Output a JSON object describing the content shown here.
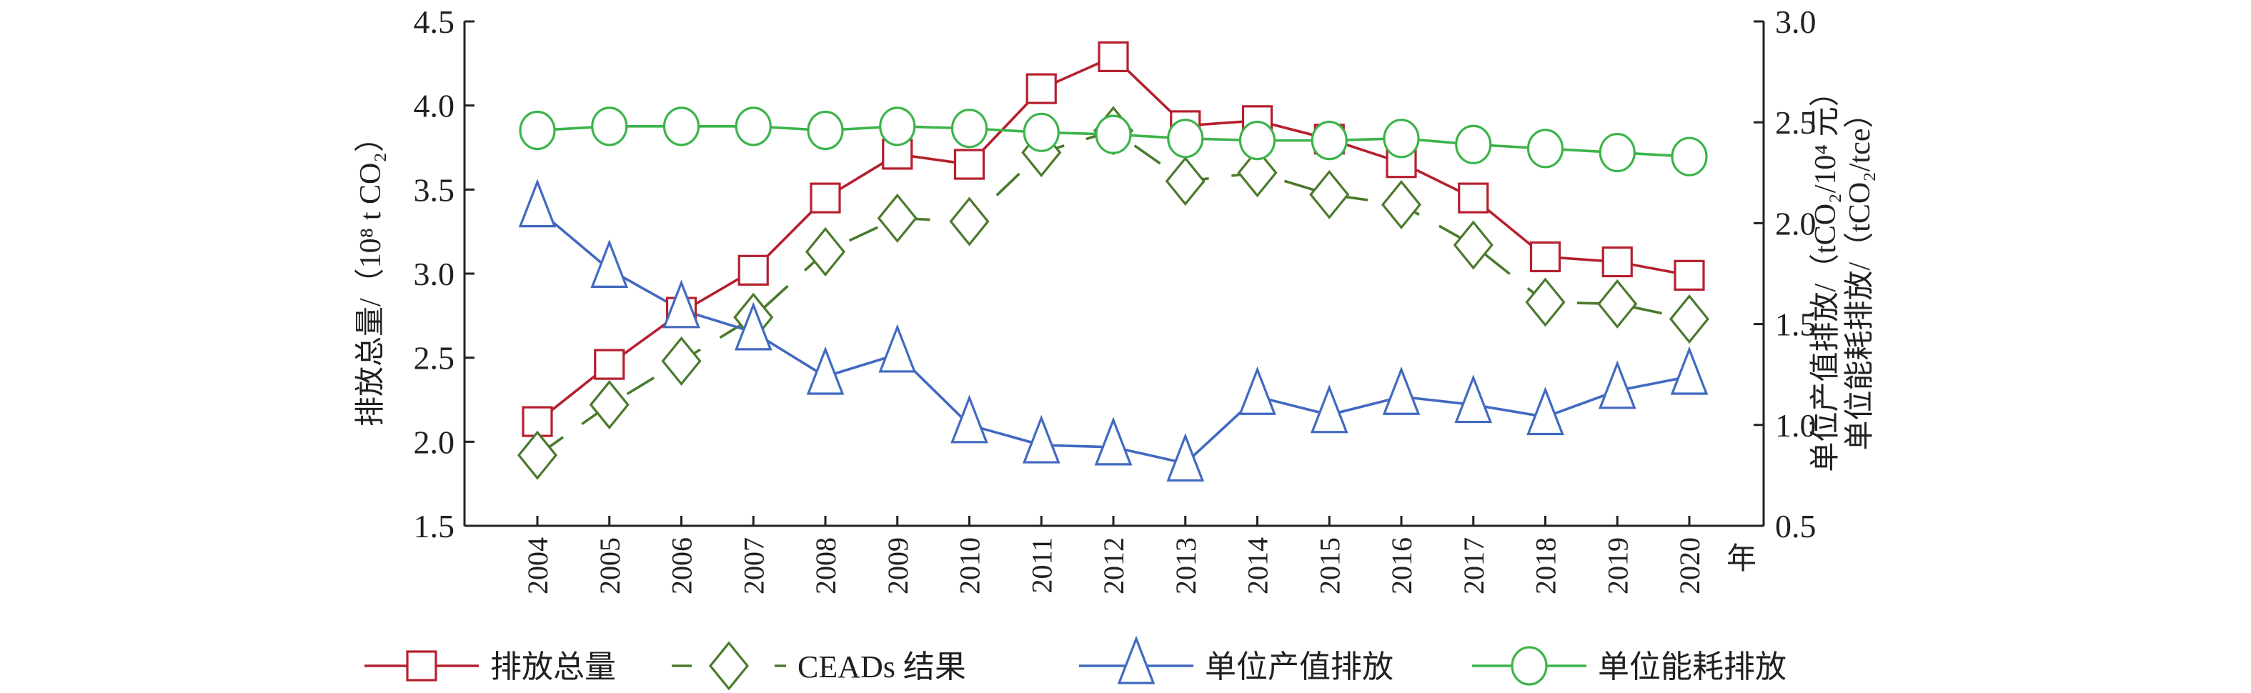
{
  "chart_data": {
    "type": "line",
    "x": [
      2004,
      2005,
      2006,
      2007,
      2008,
      2009,
      2010,
      2011,
      2012,
      2013,
      2014,
      2015,
      2016,
      2017,
      2018,
      2019,
      2020
    ],
    "x_unit_label": "年",
    "left_axis": {
      "label": "排放总量/（10⁸ t CO₂）",
      "ylim": [
        1.5,
        4.5
      ],
      "ticks": [
        "1.5",
        "2.0",
        "2.5",
        "3.0",
        "3.5",
        "4.0",
        "4.5"
      ]
    },
    "right_axis": {
      "label_lines": [
        "单位产值排放/（tCO₂/10⁴ 元）",
        "单位能耗排放/（tCO₂/tce）"
      ],
      "ylim": [
        0.5,
        3.0
      ],
      "ticks": [
        "0.5",
        "1.0",
        "1.5",
        "2.0",
        "2.5",
        "3.0"
      ]
    },
    "grid": false,
    "legend_position": "bottom",
    "series": [
      {
        "name": "排放总量",
        "axis": "left",
        "color": "#b5202e",
        "marker": "square",
        "dash": false,
        "values": [
          2.12,
          2.46,
          2.77,
          3.02,
          3.45,
          3.71,
          3.65,
          4.1,
          4.29,
          3.88,
          3.91,
          3.8,
          3.66,
          3.45,
          3.1,
          3.07,
          2.99
        ]
      },
      {
        "name": "CEADs 结果",
        "axis": "left",
        "color": "#4a7a2c",
        "marker": "diamond",
        "dash": true,
        "values": [
          1.92,
          2.22,
          2.48,
          2.74,
          3.13,
          3.33,
          3.31,
          3.72,
          3.85,
          3.55,
          3.6,
          3.47,
          3.41,
          3.17,
          2.83,
          2.82,
          2.73
        ]
      },
      {
        "name": "单位产值排放",
        "axis": "right",
        "color": "#4169c0",
        "marker": "triangle",
        "dash": false,
        "values": [
          2.07,
          1.77,
          1.57,
          1.46,
          1.24,
          1.35,
          1.0,
          0.9,
          0.89,
          0.81,
          1.14,
          1.05,
          1.14,
          1.1,
          1.04,
          1.17,
          1.24
        ]
      },
      {
        "name": "单位能耗排放",
        "axis": "right",
        "color": "#3cb44a",
        "marker": "circle",
        "dash": false,
        "values": [
          2.46,
          2.48,
          2.48,
          2.48,
          2.46,
          2.48,
          2.47,
          2.45,
          2.44,
          2.42,
          2.41,
          2.41,
          2.42,
          2.39,
          2.37,
          2.35,
          2.33
        ]
      }
    ]
  }
}
